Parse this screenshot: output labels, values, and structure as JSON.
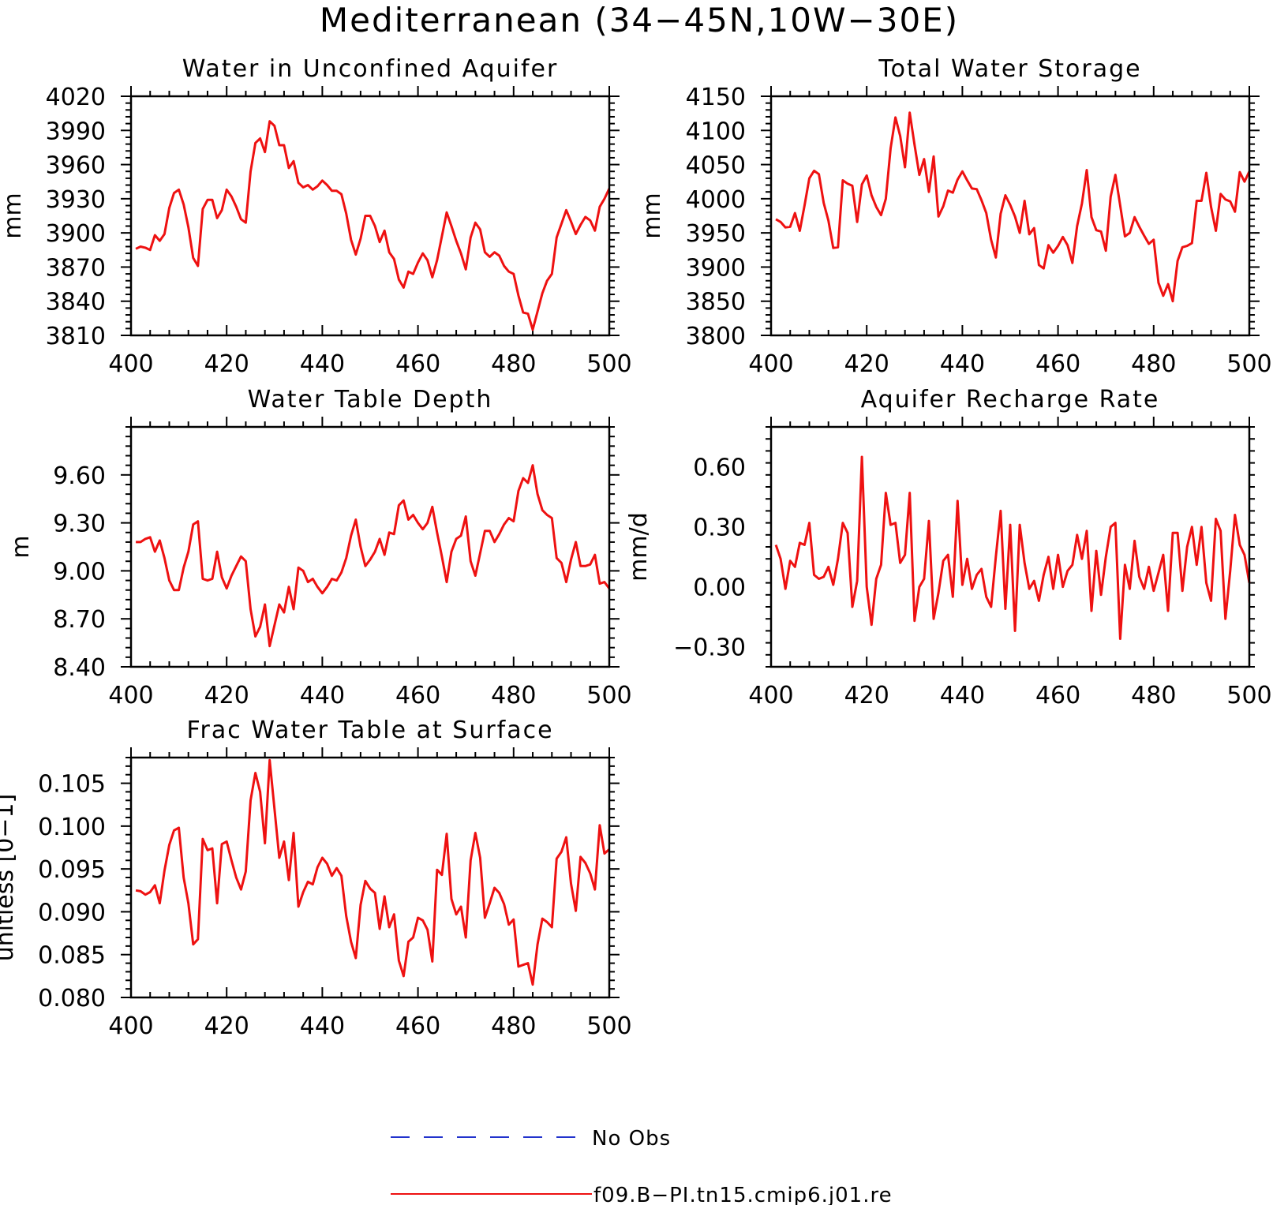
{
  "figure": {
    "title": "Mediterranean (34−45N,10W−30E)"
  },
  "legend": {
    "entries": [
      {
        "label": "No Obs",
        "color": "#2233cc",
        "style": "dashed"
      },
      {
        "label": "f09.B−PI.tn15.cmip6.j01.re",
        "color": "#ee1111",
        "style": "solid"
      }
    ]
  },
  "chart_data": [
    {
      "type": "line",
      "title": "Water in Unconfined Aquifer",
      "ylabel": "mm",
      "xlim": [
        400,
        500
      ],
      "ylim": [
        3810,
        4020
      ],
      "xticks": [
        400,
        420,
        440,
        460,
        480,
        500
      ],
      "xtick_labels": [
        "400",
        "420",
        "440",
        "460",
        "480",
        "500"
      ],
      "yticks": [
        3810,
        3840,
        3870,
        3900,
        3930,
        3960,
        3990,
        4020
      ],
      "ytick_labels": [
        "3810",
        "3840",
        "3870",
        "3900",
        "3930",
        "3960",
        "3990",
        "4020"
      ],
      "x_start": 401,
      "x_step": 1,
      "series": [
        {
          "color": "#ee1111",
          "values": [
            3886,
            3888,
            3887,
            3885,
            3898,
            3893,
            3899,
            3922,
            3935,
            3938,
            3925,
            3905,
            3878,
            3871,
            3921,
            3929,
            3929,
            3913,
            3920,
            3938,
            3932,
            3923,
            3912,
            3909,
            3954,
            3979,
            3983,
            3971,
            3998,
            3994,
            3977,
            3977,
            3957,
            3963,
            3944,
            3940,
            3942,
            3938,
            3941,
            3946,
            3942,
            3937,
            3937,
            3934,
            3917,
            3894,
            3881,
            3895,
            3915,
            3915,
            3906,
            3892,
            3902,
            3883,
            3877,
            3859,
            3852,
            3866,
            3864,
            3874,
            3882,
            3876,
            3861,
            3876,
            3897,
            3918,
            3906,
            3893,
            3882,
            3868,
            3896,
            3909,
            3903,
            3883,
            3879,
            3883,
            3880,
            3871,
            3866,
            3864,
            3845,
            3830,
            3829,
            3815,
            3831,
            3847,
            3858,
            3864,
            3896,
            3908,
            3920,
            3910,
            3899,
            3907,
            3914,
            3911,
            3902,
            3923,
            3930,
            3939
          ]
        }
      ]
    },
    {
      "type": "line",
      "title": "Total Water Storage",
      "ylabel": "mm",
      "xlim": [
        400,
        500
      ],
      "ylim": [
        3800,
        4150
      ],
      "xticks": [
        400,
        420,
        440,
        460,
        480,
        500
      ],
      "xtick_labels": [
        "400",
        "420",
        "440",
        "460",
        "480",
        "500"
      ],
      "yticks": [
        3800,
        3850,
        3900,
        3950,
        4000,
        4050,
        4100,
        4150
      ],
      "ytick_labels": [
        "3800",
        "3850",
        "3900",
        "3950",
        "4000",
        "4050",
        "4100",
        "4150"
      ],
      "x_start": 401,
      "x_step": 1,
      "series": [
        {
          "color": "#ee1111",
          "values": [
            3970,
            3966,
            3958,
            3959,
            3979,
            3953,
            3990,
            4030,
            4041,
            4036,
            3994,
            3968,
            3928,
            3929,
            4027,
            4022,
            4019,
            3966,
            4021,
            4034,
            4005,
            3988,
            3976,
            4000,
            4074,
            4119,
            4092,
            4046,
            4126,
            4079,
            4035,
            4058,
            4010,
            4062,
            3974,
            3989,
            4012,
            4009,
            4028,
            4040,
            4027,
            4015,
            4014,
            3998,
            3979,
            3940,
            3914,
            3978,
            4005,
            3991,
            3974,
            3950,
            3997,
            3948,
            3957,
            3903,
            3898,
            3932,
            3921,
            3931,
            3944,
            3932,
            3906,
            3960,
            3993,
            4042,
            3973,
            3954,
            3952,
            3924,
            4003,
            4035,
            3990,
            3945,
            3950,
            3973,
            3959,
            3946,
            3934,
            3940,
            3877,
            3858,
            3875,
            3850,
            3909,
            3929,
            3931,
            3935,
            3997,
            3997,
            4038,
            3988,
            3953,
            4007,
            3999,
            3996,
            3981,
            4039,
            4025,
            4040
          ]
        }
      ]
    },
    {
      "type": "line",
      "title": "Water Table Depth",
      "ylabel": "m",
      "xlim": [
        400,
        500
      ],
      "ylim": [
        8.4,
        9.9
      ],
      "xticks": [
        400,
        420,
        440,
        460,
        480,
        500
      ],
      "xtick_labels": [
        "400",
        "420",
        "440",
        "460",
        "480",
        "500"
      ],
      "yticks": [
        8.4,
        8.7,
        9.0,
        9.3,
        9.6
      ],
      "ytick_labels": [
        "8.40",
        "8.70",
        "9.00",
        "9.30",
        "9.60"
      ],
      "x_start": 401,
      "x_step": 1,
      "series": [
        {
          "color": "#ee1111",
          "values": [
            9.18,
            9.18,
            9.2,
            9.21,
            9.12,
            9.19,
            9.08,
            8.94,
            8.88,
            8.88,
            9.02,
            9.12,
            9.29,
            9.31,
            8.95,
            8.94,
            8.95,
            9.12,
            8.96,
            8.89,
            8.97,
            9.03,
            9.09,
            9.06,
            8.76,
            8.59,
            8.65,
            8.79,
            8.53,
            8.66,
            8.79,
            8.74,
            8.9,
            8.76,
            9.02,
            9.0,
            8.93,
            8.95,
            8.9,
            8.86,
            8.9,
            8.95,
            8.94,
            8.99,
            9.08,
            9.22,
            9.32,
            9.15,
            9.03,
            9.07,
            9.12,
            9.2,
            9.1,
            9.24,
            9.23,
            9.41,
            9.44,
            9.32,
            9.35,
            9.3,
            9.26,
            9.3,
            9.4,
            9.24,
            9.09,
            8.93,
            9.12,
            9.2,
            9.22,
            9.34,
            9.06,
            8.97,
            9.11,
            9.25,
            9.25,
            9.18,
            9.23,
            9.29,
            9.33,
            9.31,
            9.5,
            9.58,
            9.55,
            9.66,
            9.48,
            9.38,
            9.35,
            9.33,
            9.08,
            9.05,
            8.93,
            9.07,
            9.18,
            9.03,
            9.03,
            9.04,
            9.1,
            8.92,
            8.93,
            8.89
          ]
        }
      ]
    },
    {
      "type": "line",
      "title": "Aquifer Recharge Rate",
      "ylabel": "mm/d",
      "xlim": [
        400,
        500
      ],
      "ylim": [
        -0.4,
        0.8
      ],
      "xticks": [
        400,
        420,
        440,
        460,
        480,
        500
      ],
      "xtick_labels": [
        "400",
        "420",
        "440",
        "460",
        "480",
        "500"
      ],
      "yticks": [
        -0.3,
        0.0,
        0.3,
        0.6
      ],
      "ytick_labels": [
        "−0.30",
        "0.00",
        "0.30",
        "0.60"
      ],
      "x_start": 401,
      "x_step": 1,
      "series": [
        {
          "color": "#ee1111",
          "values": [
            0.21,
            0.14,
            -0.01,
            0.13,
            0.1,
            0.22,
            0.21,
            0.32,
            0.06,
            0.04,
            0.05,
            0.1,
            0.01,
            0.14,
            0.32,
            0.27,
            -0.1,
            0.03,
            0.65,
            0.0,
            -0.19,
            0.04,
            0.11,
            0.47,
            0.31,
            0.32,
            0.12,
            0.16,
            0.47,
            -0.17,
            0.0,
            0.04,
            0.33,
            -0.16,
            -0.03,
            0.13,
            0.16,
            -0.05,
            0.43,
            0.01,
            0.14,
            -0.01,
            0.06,
            0.09,
            -0.05,
            -0.1,
            0.15,
            0.38,
            -0.11,
            0.31,
            -0.22,
            0.31,
            0.12,
            -0.01,
            0.03,
            -0.07,
            0.06,
            0.15,
            -0.01,
            0.16,
            0.0,
            0.08,
            0.11,
            0.26,
            0.14,
            0.28,
            -0.12,
            0.18,
            -0.04,
            0.15,
            0.3,
            0.32,
            -0.26,
            0.11,
            -0.01,
            0.23,
            0.05,
            -0.01,
            0.1,
            -0.02,
            0.07,
            0.16,
            -0.12,
            0.27,
            0.27,
            -0.02,
            0.2,
            0.3,
            0.11,
            0.3,
            0.02,
            -0.07,
            0.34,
            0.28,
            -0.16,
            0.08,
            0.36,
            0.21,
            0.16,
            0.02
          ]
        }
      ]
    },
    {
      "type": "line",
      "title": "Frac Water Table at Surface",
      "ylabel": "unitless [0−1]",
      "xlim": [
        400,
        500
      ],
      "ylim": [
        0.08,
        0.108
      ],
      "xticks": [
        400,
        420,
        440,
        460,
        480,
        500
      ],
      "xtick_labels": [
        "400",
        "420",
        "440",
        "460",
        "480",
        "500"
      ],
      "yticks": [
        0.08,
        0.085,
        0.09,
        0.095,
        0.1,
        0.105
      ],
      "ytick_labels": [
        "0.080",
        "0.085",
        "0.090",
        "0.095",
        "0.100",
        "0.105"
      ],
      "x_start": 401,
      "x_step": 1,
      "series": [
        {
          "color": "#ee1111",
          "values": [
            0.0925,
            0.0924,
            0.092,
            0.0923,
            0.0931,
            0.091,
            0.0948,
            0.0978,
            0.0995,
            0.0998,
            0.094,
            0.091,
            0.0862,
            0.0868,
            0.0985,
            0.0972,
            0.0974,
            0.091,
            0.0979,
            0.0982,
            0.096,
            0.094,
            0.0926,
            0.0947,
            0.103,
            0.1062,
            0.104,
            0.098,
            0.1077,
            0.102,
            0.0963,
            0.0982,
            0.0937,
            0.0992,
            0.0906,
            0.0923,
            0.0935,
            0.0932,
            0.0952,
            0.0963,
            0.0956,
            0.0942,
            0.0951,
            0.0942,
            0.0895,
            0.0865,
            0.0846,
            0.0908,
            0.0936,
            0.0927,
            0.0922,
            0.088,
            0.0918,
            0.0882,
            0.0897,
            0.0843,
            0.0825,
            0.0865,
            0.087,
            0.0893,
            0.089,
            0.0879,
            0.0842,
            0.0949,
            0.0943,
            0.0991,
            0.0915,
            0.0897,
            0.0906,
            0.087,
            0.096,
            0.0992,
            0.0963,
            0.0893,
            0.091,
            0.0928,
            0.0922,
            0.0909,
            0.0885,
            0.0891,
            0.0836,
            0.0838,
            0.084,
            0.0815,
            0.0862,
            0.0892,
            0.0888,
            0.0882,
            0.0962,
            0.097,
            0.0987,
            0.0933,
            0.0901,
            0.0964,
            0.0957,
            0.0945,
            0.0926,
            0.1001,
            0.0968,
            0.0973
          ]
        }
      ]
    }
  ]
}
